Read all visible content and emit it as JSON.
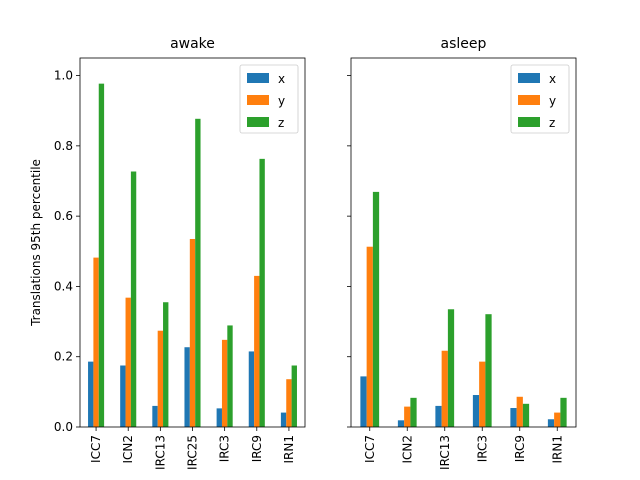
{
  "chart_data": [
    {
      "type": "bar",
      "title": "awake",
      "xlabel": "",
      "ylabel": "Translations 95th percentile",
      "ylim": [
        0,
        1.05
      ],
      "yticks": [
        "0.0",
        "0.2",
        "0.4",
        "0.6",
        "0.8",
        "1.0"
      ],
      "categories": [
        "ICC7",
        "ICN2",
        "IRC13",
        "IRC25",
        "IRC3",
        "IRC9",
        "IRN1"
      ],
      "series": [
        {
          "name": "x",
          "values": [
            0.186,
            0.175,
            0.06,
            0.227,
            0.053,
            0.215,
            0.041
          ]
        },
        {
          "name": "y",
          "values": [
            0.482,
            0.368,
            0.274,
            0.535,
            0.248,
            0.43,
            0.136
          ]
        },
        {
          "name": "z",
          "values": [
            0.977,
            0.727,
            0.355,
            0.877,
            0.289,
            0.763,
            0.175
          ]
        }
      ],
      "legend": "top-right",
      "grid": false
    },
    {
      "type": "bar",
      "title": "asleep",
      "xlabel": "",
      "ylabel": "",
      "ylim": [
        0,
        1.05
      ],
      "yticks": [],
      "categories": [
        "ICC7",
        "ICN2",
        "IRC13",
        "IRC3",
        "IRC9",
        "IRN1"
      ],
      "series": [
        {
          "name": "x",
          "values": [
            0.144,
            0.019,
            0.06,
            0.091,
            0.054,
            0.022
          ]
        },
        {
          "name": "y",
          "values": [
            0.513,
            0.058,
            0.217,
            0.186,
            0.086,
            0.041
          ]
        },
        {
          "name": "z",
          "values": [
            0.669,
            0.083,
            0.335,
            0.321,
            0.066,
            0.083
          ]
        }
      ],
      "legend": "top-right",
      "grid": false
    }
  ],
  "colors": {
    "x": "#1f77b4",
    "y": "#ff7f0e",
    "z": "#2ca02c"
  }
}
